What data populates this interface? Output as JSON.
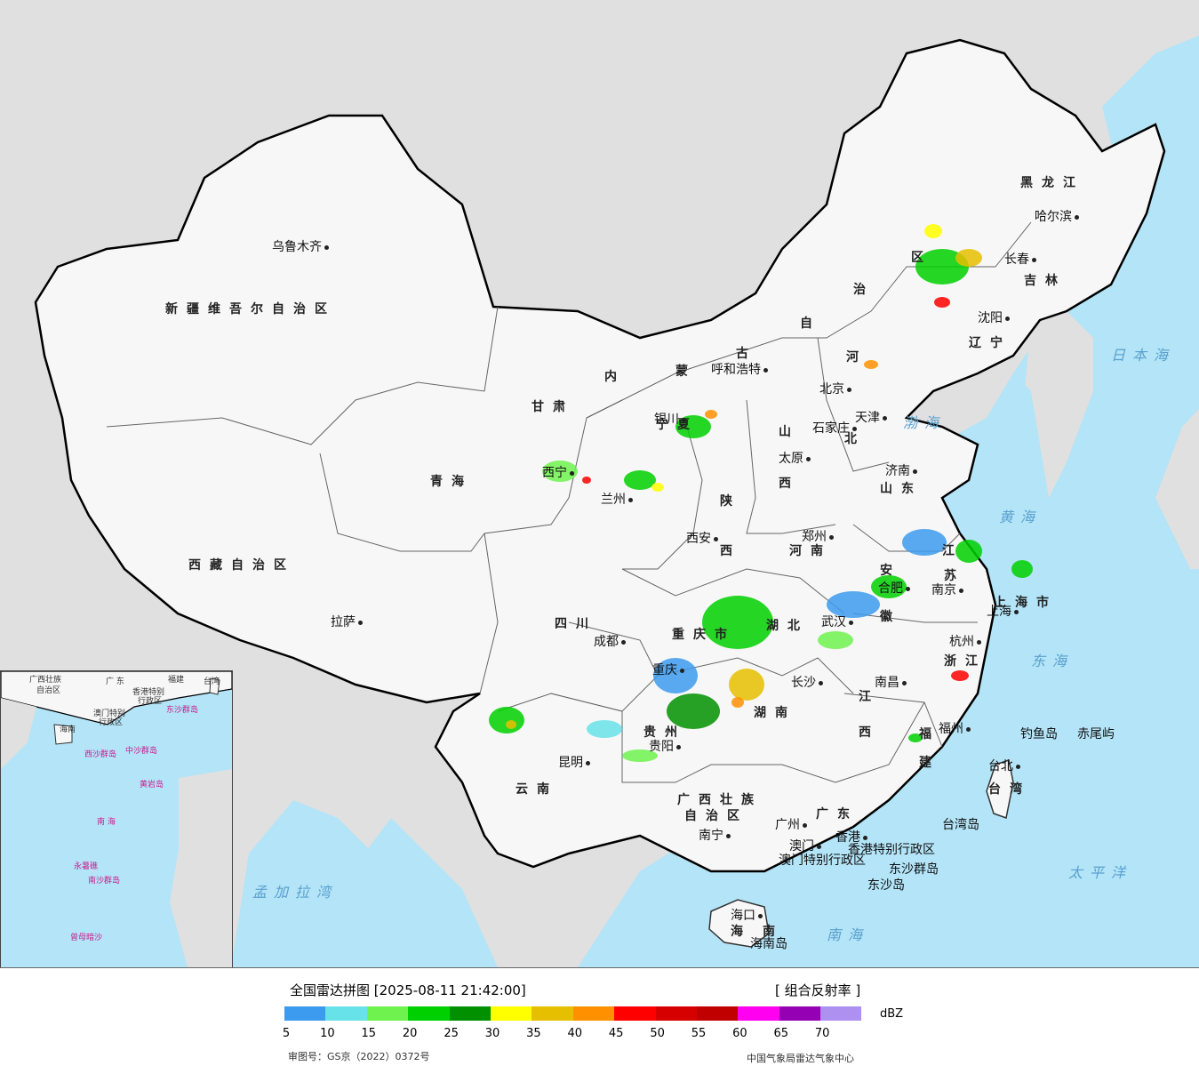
{
  "map": {
    "region_labels": [
      {
        "id": "xinjiang",
        "text": "新疆维吾尔自治区"
      },
      {
        "id": "xizang",
        "text": "西藏自治区"
      },
      {
        "id": "qinghai",
        "text": "青海"
      },
      {
        "id": "gansu",
        "text": "甘肃"
      },
      {
        "id": "neimenggu_nei",
        "text": "内"
      },
      {
        "id": "neimenggu_meng",
        "text": "蒙"
      },
      {
        "id": "neimenggu_gu",
        "text": "古"
      },
      {
        "id": "neimenggu_zi",
        "text": "自"
      },
      {
        "id": "neimenggu_zhi",
        "text": "治"
      },
      {
        "id": "neimenggu_qu",
        "text": "区"
      },
      {
        "id": "heilongjiang",
        "text": "黑龙江"
      },
      {
        "id": "jilin",
        "text": "吉林"
      },
      {
        "id": "liaoning",
        "text": "辽宁"
      },
      {
        "id": "hebei_he",
        "text": "河"
      },
      {
        "id": "hebei_bei",
        "text": "北"
      },
      {
        "id": "shanxi",
        "text": "山"
      },
      {
        "id": "shanxi2",
        "text": "西"
      },
      {
        "id": "shandong",
        "text": "山东"
      },
      {
        "id": "shaanxi_shan",
        "text": "陕"
      },
      {
        "id": "shaanxi_xi",
        "text": "西"
      },
      {
        "id": "henan",
        "text": "河南"
      },
      {
        "id": "jiangsu_jiang",
        "text": "江"
      },
      {
        "id": "jiangsu_su",
        "text": "苏"
      },
      {
        "id": "anhui_an",
        "text": "安"
      },
      {
        "id": "anhui_hui",
        "text": "徽"
      },
      {
        "id": "sichuan",
        "text": "四川"
      },
      {
        "id": "chongqing",
        "text": "重庆市"
      },
      {
        "id": "hubei",
        "text": "湖北"
      },
      {
        "id": "hunan",
        "text": "湖南"
      },
      {
        "id": "jiangxi_jiang",
        "text": "江"
      },
      {
        "id": "jiangxi_xi",
        "text": "西"
      },
      {
        "id": "zhejiang",
        "text": "浙江"
      },
      {
        "id": "fujian_fu",
        "text": "福"
      },
      {
        "id": "fujian_jian",
        "text": "建"
      },
      {
        "id": "guizhou",
        "text": "贵州"
      },
      {
        "id": "yunnan",
        "text": "云南"
      },
      {
        "id": "guangxi",
        "text": "广西壮族"
      },
      {
        "id": "guangxi2",
        "text": "自治区"
      },
      {
        "id": "guangdong",
        "text": "广东"
      },
      {
        "id": "hainan_hai",
        "text": "海"
      },
      {
        "id": "hainan_nan",
        "text": "南"
      },
      {
        "id": "taiwan",
        "text": "台湾"
      },
      {
        "id": "shanghai",
        "text": "上海市"
      },
      {
        "id": "ningxia",
        "text": "宁夏"
      }
    ],
    "cities": [
      {
        "id": "urumqi",
        "text": "乌鲁木齐"
      },
      {
        "id": "lhasa",
        "text": "拉萨"
      },
      {
        "id": "xining",
        "text": "西宁"
      },
      {
        "id": "lanzhou",
        "text": "兰州"
      },
      {
        "id": "yinchuan",
        "text": "银川"
      },
      {
        "id": "hohhot",
        "text": "呼和浩特"
      },
      {
        "id": "beijing",
        "text": "北京"
      },
      {
        "id": "tianjin",
        "text": "天津"
      },
      {
        "id": "shijiazhuang",
        "text": "石家庄"
      },
      {
        "id": "taiyuan",
        "text": "太原"
      },
      {
        "id": "jinan",
        "text": "济南"
      },
      {
        "id": "zhengzhou",
        "text": "郑州"
      },
      {
        "id": "xian",
        "text": "西安"
      },
      {
        "id": "chengdu",
        "text": "成都"
      },
      {
        "id": "chongqing_city",
        "text": "重庆"
      },
      {
        "id": "wuhan",
        "text": "武汉"
      },
      {
        "id": "hefei",
        "text": "合肥"
      },
      {
        "id": "nanjing",
        "text": "南京"
      },
      {
        "id": "shanghai_city",
        "text": "上海"
      },
      {
        "id": "hangzhou",
        "text": "杭州"
      },
      {
        "id": "nanchang",
        "text": "南昌"
      },
      {
        "id": "changsha",
        "text": "长沙"
      },
      {
        "id": "fuzhou",
        "text": "福州"
      },
      {
        "id": "guiyang",
        "text": "贵阳"
      },
      {
        "id": "kunming",
        "text": "昆明"
      },
      {
        "id": "nanning",
        "text": "南宁"
      },
      {
        "id": "guangzhou",
        "text": "广州"
      },
      {
        "id": "hongkong",
        "text": "香港"
      },
      {
        "id": "macau",
        "text": "澳门"
      },
      {
        "id": "haikou",
        "text": "海口"
      },
      {
        "id": "taipei",
        "text": "台北"
      },
      {
        "id": "shenyang",
        "text": "沈阳"
      },
      {
        "id": "changchun",
        "text": "长春"
      },
      {
        "id": "harbin",
        "text": "哈尔滨"
      }
    ],
    "sea_labels": [
      {
        "id": "bohai",
        "text": "渤海"
      },
      {
        "id": "huanghai",
        "text": "黄海"
      },
      {
        "id": "donghai",
        "text": "东海"
      },
      {
        "id": "nanhai",
        "text": "南海"
      },
      {
        "id": "taipingyang",
        "text": "太平洋"
      },
      {
        "id": "ribenhai",
        "text": "日本海"
      },
      {
        "id": "mengjialawan",
        "text": "孟加拉湾"
      }
    ],
    "other_labels": [
      {
        "id": "hk_sar",
        "text": "香港特别行政区"
      },
      {
        "id": "mo_sar",
        "text": "澳门特别行政区"
      },
      {
        "id": "dongsha_qundao",
        "text": "东沙群岛"
      },
      {
        "id": "dongsha_dao",
        "text": "东沙岛"
      },
      {
        "id": "diaoyu",
        "text": "钓鱼岛"
      },
      {
        "id": "chiwei",
        "text": "赤尾屿"
      },
      {
        "id": "taiwan_dao",
        "text": "台湾岛"
      },
      {
        "id": "hainan_dao",
        "text": "海南岛"
      }
    ],
    "inset_labels": [
      {
        "id": "i_guangxi",
        "text": "广西壮族"
      },
      {
        "id": "i_zizhiqu",
        "text": "自治区"
      },
      {
        "id": "i_guangdong",
        "text": "广 东"
      },
      {
        "id": "i_fujian",
        "text": "福建"
      },
      {
        "id": "i_taiwan",
        "text": "台湾"
      },
      {
        "id": "i_hk",
        "text": "香港特别"
      },
      {
        "id": "i_hk2",
        "text": "行政区"
      },
      {
        "id": "i_mo",
        "text": "澳门特别"
      },
      {
        "id": "i_mo2",
        "text": "行政区"
      },
      {
        "id": "i_dongsha",
        "text": "东沙群岛"
      },
      {
        "id": "i_hainan",
        "text": "海南"
      },
      {
        "id": "i_xisha",
        "text": "西沙群岛"
      },
      {
        "id": "i_zhongsha",
        "text": "中沙群岛"
      },
      {
        "id": "i_huangyan",
        "text": "黄岩岛"
      },
      {
        "id": "i_nanhai",
        "text": "南 海"
      },
      {
        "id": "i_nansha",
        "text": "南沙群岛"
      },
      {
        "id": "i_yongshu",
        "text": "永暑礁"
      },
      {
        "id": "i_zengmu",
        "text": "曾母暗沙"
      }
    ]
  },
  "legend": {
    "title": "全国雷达拼图 [2025-08-11 21:42:00]",
    "product": "[ 组合反射率 ]",
    "unit": "dBZ",
    "colors": [
      "#3d9bef",
      "#68e2e9",
      "#6ff24d",
      "#00d000",
      "#019000",
      "#ffff00",
      "#e6c000",
      "#ff9000",
      "#ff0000",
      "#d60000",
      "#c00000",
      "#ff00f0",
      "#9600b4",
      "#ad90f0"
    ],
    "ticks": [
      "5",
      "10",
      "15",
      "20",
      "25",
      "30",
      "35",
      "40",
      "45",
      "50",
      "55",
      "60",
      "65",
      "70"
    ],
    "review_number": "审图号：GS京（2022）0372号",
    "source": "中国气象局雷达气象中心"
  }
}
